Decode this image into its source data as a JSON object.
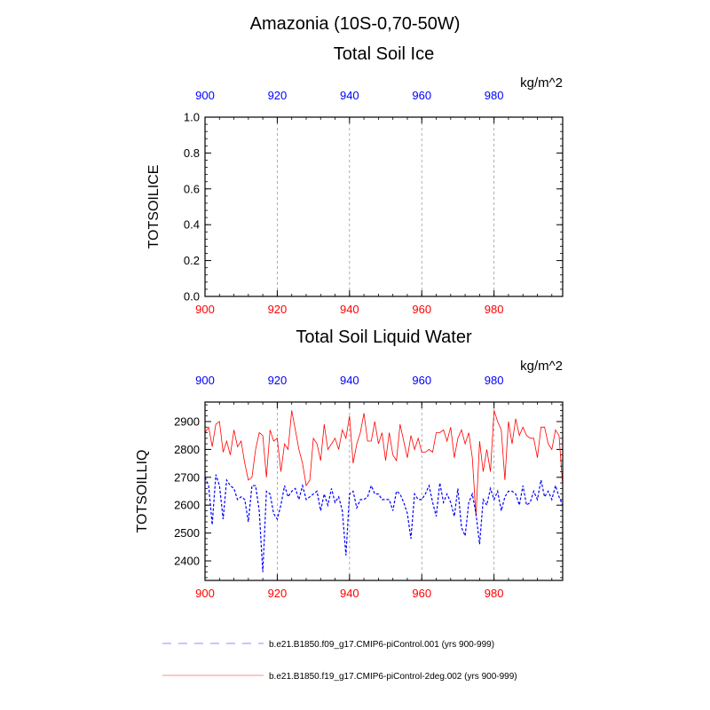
{
  "main_title": "Amazonia (10S-0,70-50W)",
  "legend": {
    "entries": [
      {
        "label": "b.e21.B1850.f09_g17.CMIP6-piControl.001 (yrs 900-999)",
        "color": "#0000ff",
        "style": "dashed"
      },
      {
        "label": "b.e21.B1850.f19_g17.CMIP6-piControl-2deg.002 (yrs 900-999)",
        "color": "#ff0000",
        "style": "solid"
      }
    ]
  },
  "colors": {
    "bottom_ticks": "#ff0000",
    "top_ticks": "#0000ff",
    "grid": "#999999"
  },
  "chart_data": [
    {
      "type": "line",
      "title": "Total Soil Ice",
      "units": "kg/m^2",
      "ylabel": "TOTSOILICE",
      "xlim": [
        900,
        999
      ],
      "ylim": [
        0,
        1
      ],
      "xticks": [
        900,
        920,
        940,
        960,
        980
      ],
      "yticks": [
        "0.0",
        "0.2",
        "0.4",
        "0.6",
        "0.8",
        "1.0"
      ],
      "ytick_values": [
        0,
        0.2,
        0.4,
        0.6,
        0.8,
        1.0
      ],
      "grid_x": true,
      "series": []
    },
    {
      "type": "line",
      "title": "Total Soil Liquid Water",
      "units": "kg/m^2",
      "ylabel": "TOTSOILLIQ",
      "xlim": [
        900,
        999
      ],
      "ylim": [
        2330,
        2970
      ],
      "xticks": [
        900,
        920,
        940,
        960,
        980
      ],
      "yticks": [
        "2400",
        "2500",
        "2600",
        "2700",
        "2800",
        "2900"
      ],
      "ytick_values": [
        2400,
        2500,
        2600,
        2700,
        2800,
        2900
      ],
      "grid_x": true,
      "x_start": 900,
      "series": [
        {
          "name": "b.e21.B1850.f19_g17.CMIP6-piControl-2deg.002 (yrs 900-999)",
          "color": "#ff0000",
          "style": "solid",
          "values": [
            2860,
            2880,
            2810,
            2890,
            2900,
            2790,
            2830,
            2780,
            2870,
            2810,
            2830,
            2750,
            2690,
            2700,
            2800,
            2860,
            2850,
            2700,
            2870,
            2830,
            2840,
            2720,
            2820,
            2800,
            2940,
            2870,
            2800,
            2750,
            2670,
            2690,
            2840,
            2820,
            2760,
            2890,
            2800,
            2820,
            2840,
            2800,
            2870,
            2840,
            2920,
            2750,
            2820,
            2860,
            2930,
            2830,
            2830,
            2900,
            2820,
            2860,
            2760,
            2860,
            2780,
            2760,
            2890,
            2830,
            2770,
            2850,
            2800,
            2840,
            2790,
            2790,
            2800,
            2790,
            2860,
            2860,
            2870,
            2830,
            2880,
            2770,
            2840,
            2870,
            2820,
            2860,
            2770,
            2560,
            2830,
            2720,
            2800,
            2720,
            2940,
            2900,
            2870,
            2690,
            2900,
            2820,
            2910,
            2850,
            2880,
            2850,
            2840,
            2840,
            2770,
            2880,
            2880,
            2820,
            2800,
            2870,
            2850,
            2670
          ]
        },
        {
          "name": "b.e21.B1850.f09_g17.CMIP6-piControl.001 (yrs 900-999)",
          "color": "#0000ff",
          "style": "dashed",
          "values": [
            2700,
            2670,
            2530,
            2710,
            2670,
            2550,
            2690,
            2670,
            2660,
            2620,
            2630,
            2620,
            2540,
            2670,
            2670,
            2580,
            2360,
            2650,
            2640,
            2570,
            2550,
            2600,
            2670,
            2630,
            2650,
            2660,
            2620,
            2670,
            2620,
            2630,
            2640,
            2650,
            2580,
            2640,
            2600,
            2660,
            2610,
            2630,
            2580,
            2420,
            2640,
            2650,
            2590,
            2620,
            2620,
            2630,
            2670,
            2640,
            2640,
            2620,
            2620,
            2620,
            2580,
            2650,
            2640,
            2610,
            2570,
            2480,
            2640,
            2620,
            2620,
            2640,
            2670,
            2610,
            2560,
            2680,
            2610,
            2640,
            2610,
            2560,
            2660,
            2520,
            2490,
            2610,
            2640,
            2570,
            2460,
            2620,
            2600,
            2660,
            2620,
            2650,
            2580,
            2630,
            2650,
            2650,
            2640,
            2600,
            2670,
            2600,
            2610,
            2650,
            2620,
            2690,
            2630,
            2650,
            2620,
            2670,
            2630,
            2600
          ]
        }
      ]
    }
  ]
}
